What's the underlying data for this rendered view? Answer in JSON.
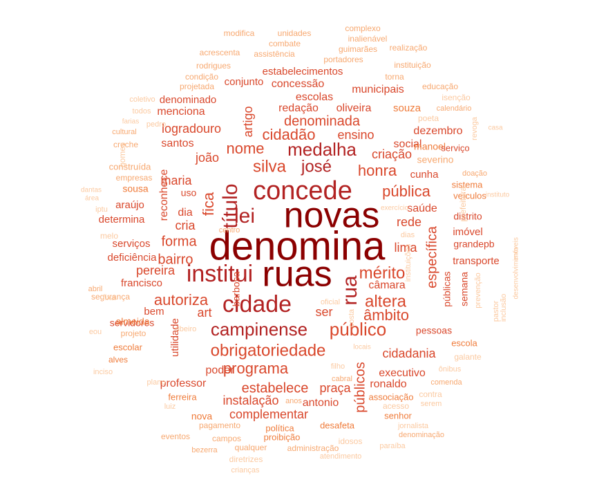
{
  "palette": {
    "t1": "#8b0000",
    "t2": "#b22222",
    "t3": "#d9472b",
    "t4": "#ef7b3a",
    "t5": "#f7a870",
    "t6": "#fbc9a0"
  },
  "words": [
    {
      "text": "denomina",
      "weight": 1.0,
      "tier": "t1",
      "vertical": false
    },
    {
      "text": "novas",
      "weight": 0.97,
      "tier": "t1",
      "vertical": false
    },
    {
      "text": "ruas",
      "weight": 0.98,
      "tier": "t1",
      "vertical": false
    },
    {
      "text": "concede",
      "weight": 0.8,
      "tier": "t2",
      "vertical": false
    },
    {
      "text": "institui",
      "weight": 0.72,
      "tier": "t2",
      "vertical": false
    },
    {
      "text": "cidade",
      "weight": 0.72,
      "tier": "t2",
      "vertical": false
    },
    {
      "text": "título",
      "weight": 0.66,
      "tier": "t2",
      "vertical": true
    },
    {
      "text": "lei",
      "weight": 0.66,
      "tier": "t2",
      "vertical": false
    },
    {
      "text": "rua",
      "weight": 0.62,
      "tier": "t2",
      "vertical": true
    },
    {
      "text": "campinense",
      "weight": 0.58,
      "tier": "t2",
      "vertical": false
    },
    {
      "text": "medalha",
      "weight": 0.55,
      "tier": "t2",
      "vertical": false
    },
    {
      "text": "público",
      "weight": 0.55,
      "tier": "t3",
      "vertical": false
    },
    {
      "text": "obrigatoriedade",
      "weight": 0.52,
      "tier": "t3",
      "vertical": false
    },
    {
      "text": "josé",
      "weight": 0.52,
      "tier": "t2",
      "vertical": false
    },
    {
      "text": "silva",
      "weight": 0.52,
      "tier": "t3",
      "vertical": false
    },
    {
      "text": "mérito",
      "weight": 0.5,
      "tier": "t3",
      "vertical": false
    },
    {
      "text": "altera",
      "weight": 0.5,
      "tier": "t3",
      "vertical": false
    },
    {
      "text": "fica",
      "weight": 0.48,
      "tier": "t3",
      "vertical": true
    },
    {
      "text": "cidadão",
      "weight": 0.46,
      "tier": "t3",
      "vertical": false
    },
    {
      "text": "nome",
      "weight": 0.44,
      "tier": "t3",
      "vertical": false
    },
    {
      "text": "autoriza",
      "weight": 0.44,
      "tier": "t3",
      "vertical": false
    },
    {
      "text": "pública",
      "weight": 0.42,
      "tier": "t3",
      "vertical": false
    },
    {
      "text": "honra",
      "weight": 0.42,
      "tier": "t3",
      "vertical": false
    },
    {
      "text": "programa",
      "weight": 0.42,
      "tier": "t3",
      "vertical": false
    },
    {
      "text": "âmbito",
      "weight": 0.42,
      "tier": "t3",
      "vertical": false
    },
    {
      "text": "específica",
      "weight": 0.42,
      "tier": "t3",
      "vertical": true
    },
    {
      "text": "denominada",
      "weight": 0.4,
      "tier": "t3",
      "vertical": false
    },
    {
      "text": "estabelece",
      "weight": 0.38,
      "tier": "t3",
      "vertical": false
    },
    {
      "text": "forma",
      "weight": 0.38,
      "tier": "t3",
      "vertical": false
    },
    {
      "text": "públicos",
      "weight": 0.38,
      "tier": "t3",
      "vertical": true
    },
    {
      "text": "bairro",
      "weight": 0.36,
      "tier": "t3",
      "vertical": false
    },
    {
      "text": "ensino",
      "weight": 0.34,
      "tier": "t3",
      "vertical": false
    },
    {
      "text": "criação",
      "weight": 0.34,
      "tier": "t3",
      "vertical": false
    },
    {
      "text": "rede",
      "weight": 0.34,
      "tier": "t3",
      "vertical": false
    },
    {
      "text": "lima",
      "weight": 0.34,
      "tier": "t3",
      "vertical": false
    },
    {
      "text": "maria",
      "weight": 0.34,
      "tier": "t3",
      "vertical": false
    },
    {
      "text": "art",
      "weight": 0.33,
      "tier": "t3",
      "vertical": false
    },
    {
      "text": "ser",
      "weight": 0.32,
      "tier": "t3",
      "vertical": false
    },
    {
      "text": "cria",
      "weight": 0.32,
      "tier": "t3",
      "vertical": false
    },
    {
      "text": "artigo",
      "weight": 0.3,
      "tier": "t3",
      "vertical": true
    },
    {
      "text": "pereira",
      "weight": 0.3,
      "tier": "t3",
      "vertical": false
    },
    {
      "text": "logradouro",
      "weight": 0.3,
      "tier": "t3",
      "vertical": false
    },
    {
      "text": "joão",
      "weight": 0.3,
      "tier": "t3",
      "vertical": false
    },
    {
      "text": "cidadania",
      "weight": 0.3,
      "tier": "t3",
      "vertical": false
    },
    {
      "text": "complementar",
      "weight": 0.3,
      "tier": "t3",
      "vertical": false
    },
    {
      "text": "instalação",
      "weight": 0.3,
      "tier": "t3",
      "vertical": false
    },
    {
      "text": "praça",
      "weight": 0.3,
      "tier": "t3",
      "vertical": false
    },
    {
      "text": "reconhece",
      "weight": 0.3,
      "tier": "t3",
      "vertical": true
    },
    {
      "text": "dia",
      "weight": 0.3,
      "tier": "t3",
      "vertical": false
    },
    {
      "text": "santos",
      "weight": 0.3,
      "tier": "t3",
      "vertical": false
    },
    {
      "text": "saúde",
      "weight": 0.3,
      "tier": "t3",
      "vertical": false
    },
    {
      "text": "câmara",
      "weight": 0.28,
      "tier": "t3",
      "vertical": false
    },
    {
      "text": "redação",
      "weight": 0.28,
      "tier": "t3",
      "vertical": false
    },
    {
      "text": "escolas",
      "weight": 0.28,
      "tier": "t3",
      "vertical": false
    },
    {
      "text": "social",
      "weight": 0.28,
      "tier": "t3",
      "vertical": false
    },
    {
      "text": "menciona",
      "weight": 0.28,
      "tier": "t3",
      "vertical": false
    },
    {
      "text": "professor",
      "weight": 0.28,
      "tier": "t3",
      "vertical": false
    },
    {
      "text": "poder",
      "weight": 0.28,
      "tier": "t3",
      "vertical": false
    },
    {
      "text": "executivo",
      "weight": 0.28,
      "tier": "t3",
      "vertical": false
    },
    {
      "text": "ronaldo",
      "weight": 0.28,
      "tier": "t3",
      "vertical": false
    },
    {
      "text": "antonio",
      "weight": 0.28,
      "tier": "t3",
      "vertical": false
    },
    {
      "text": "oliveira",
      "weight": 0.28,
      "tier": "t3",
      "vertical": false
    },
    {
      "text": "utilidade",
      "weight": 0.26,
      "tier": "t3",
      "vertical": true
    },
    {
      "text": "cunha",
      "weight": 0.26,
      "tier": "t3",
      "vertical": false
    },
    {
      "text": "concessão",
      "weight": 0.26,
      "tier": "t3",
      "vertical": false
    },
    {
      "text": "municipais",
      "weight": 0.26,
      "tier": "t3",
      "vertical": false
    },
    {
      "text": "conjunto",
      "weight": 0.26,
      "tier": "t3",
      "vertical": false
    },
    {
      "text": "estabelecimentos",
      "weight": 0.26,
      "tier": "t3",
      "vertical": false
    },
    {
      "text": "dezembro",
      "weight": 0.26,
      "tier": "t3",
      "vertical": false
    },
    {
      "text": "souza",
      "weight": 0.26,
      "tier": "t4",
      "vertical": false
    },
    {
      "text": "francisco",
      "weight": 0.26,
      "tier": "t3",
      "vertical": false
    },
    {
      "text": "bem",
      "weight": 0.26,
      "tier": "t3",
      "vertical": false
    },
    {
      "text": "serviços",
      "weight": 0.26,
      "tier": "t3",
      "vertical": false
    },
    {
      "text": "denominado",
      "weight": 0.26,
      "tier": "t3",
      "vertical": false
    },
    {
      "text": "transporte",
      "weight": 0.26,
      "tier": "t3",
      "vertical": false
    },
    {
      "text": "araújo",
      "weight": 0.26,
      "tier": "t3",
      "vertical": false
    },
    {
      "text": "determina",
      "weight": 0.26,
      "tier": "t3",
      "vertical": false
    },
    {
      "text": "deficiência",
      "weight": 0.26,
      "tier": "t3",
      "vertical": false
    },
    {
      "text": "imóvel",
      "weight": 0.26,
      "tier": "t3",
      "vertical": false
    },
    {
      "text": "distrito",
      "weight": 0.24,
      "tier": "t3",
      "vertical": false
    },
    {
      "text": "grandepb",
      "weight": 0.24,
      "tier": "t3",
      "vertical": false
    },
    {
      "text": "públicas",
      "weight": 0.24,
      "tier": "t3",
      "vertical": true
    },
    {
      "text": "semana",
      "weight": 0.24,
      "tier": "t3",
      "vertical": true
    },
    {
      "text": "pessoas",
      "weight": 0.24,
      "tier": "t3",
      "vertical": false
    },
    {
      "text": "uso",
      "weight": 0.24,
      "tier": "t3",
      "vertical": false
    },
    {
      "text": "barbosa",
      "weight": 0.24,
      "tier": "t3",
      "vertical": true
    },
    {
      "text": "servidores",
      "weight": 0.24,
      "tier": "t3",
      "vertical": false
    },
    {
      "text": "manoel",
      "weight": 0.22,
      "tier": "t4",
      "vertical": false
    },
    {
      "text": "nova",
      "weight": 0.22,
      "tier": "t4",
      "vertical": false
    },
    {
      "text": "sousa",
      "weight": 0.22,
      "tier": "t4",
      "vertical": false
    },
    {
      "text": "almeida",
      "weight": 0.22,
      "tier": "t4",
      "vertical": false
    },
    {
      "text": "severino",
      "weight": 0.2,
      "tier": "t5",
      "vertical": false
    },
    {
      "text": "serviço",
      "weight": 0.2,
      "tier": "t3",
      "vertical": false
    },
    {
      "text": "veículos",
      "weight": 0.2,
      "tier": "t4",
      "vertical": false
    },
    {
      "text": "sistema",
      "weight": 0.2,
      "tier": "t4",
      "vertical": false
    },
    {
      "text": "escola",
      "weight": 0.2,
      "tier": "t4",
      "vertical": false
    },
    {
      "text": "escolar",
      "weight": 0.2,
      "tier": "t4",
      "vertical": false
    },
    {
      "text": "associação",
      "weight": 0.2,
      "tier": "t4",
      "vertical": false
    },
    {
      "text": "desafeta",
      "weight": 0.2,
      "tier": "t4",
      "vertical": false
    },
    {
      "text": "senhor",
      "weight": 0.2,
      "tier": "t4",
      "vertical": false
    },
    {
      "text": "política",
      "weight": 0.2,
      "tier": "t4",
      "vertical": false
    },
    {
      "text": "proibição",
      "weight": 0.2,
      "tier": "t4",
      "vertical": false
    },
    {
      "text": "ferreira",
      "weight": 0.2,
      "tier": "t4",
      "vertical": false
    },
    {
      "text": "construída",
      "weight": 0.18,
      "tier": "t5",
      "vertical": false
    },
    {
      "text": "empresas",
      "weight": 0.18,
      "tier": "t5",
      "vertical": false
    },
    {
      "text": "alves",
      "weight": 0.18,
      "tier": "t4",
      "vertical": false
    },
    {
      "text": "projeto",
      "weight": 0.18,
      "tier": "t5",
      "vertical": false
    },
    {
      "text": "segurança",
      "weight": 0.18,
      "tier": "t5",
      "vertical": false
    },
    {
      "text": "rodrigues",
      "weight": 0.18,
      "tier": "t5",
      "vertical": false
    },
    {
      "text": "acrescenta",
      "weight": 0.18,
      "tier": "t5",
      "vertical": false
    },
    {
      "text": "assistência",
      "weight": 0.16,
      "tier": "t5",
      "vertical": false
    },
    {
      "text": "combate",
      "weight": 0.16,
      "tier": "t5",
      "vertical": false
    },
    {
      "text": "modifica",
      "weight": 0.16,
      "tier": "t5",
      "vertical": false
    },
    {
      "text": "unidades",
      "weight": 0.16,
      "tier": "t5",
      "vertical": false
    },
    {
      "text": "complexo",
      "weight": 0.16,
      "tier": "t5",
      "vertical": false
    },
    {
      "text": "inalienável",
      "weight": 0.16,
      "tier": "t5",
      "vertical": false
    },
    {
      "text": "guimarães",
      "weight": 0.15,
      "tier": "t5",
      "vertical": false
    },
    {
      "text": "realização",
      "weight": 0.16,
      "tier": "t5",
      "vertical": false
    },
    {
      "text": "portadores",
      "weight": 0.16,
      "tier": "t5",
      "vertical": false
    },
    {
      "text": "instituição",
      "weight": 0.18,
      "tier": "t5",
      "vertical": false
    },
    {
      "text": "torna",
      "weight": 0.15,
      "tier": "t5",
      "vertical": false
    },
    {
      "text": "condição",
      "weight": 0.16,
      "tier": "t5",
      "vertical": false
    },
    {
      "text": "projetada",
      "weight": 0.15,
      "tier": "t5",
      "vertical": false
    },
    {
      "text": "educação",
      "weight": 0.16,
      "tier": "t5",
      "vertical": false
    },
    {
      "text": "isenção",
      "weight": 0.14,
      "tier": "t6",
      "vertical": false
    },
    {
      "text": "calendário",
      "weight": 0.18,
      "tier": "t5",
      "vertical": false
    },
    {
      "text": "poeta",
      "weight": 0.14,
      "tier": "t6",
      "vertical": false
    },
    {
      "text": "coletivo",
      "weight": 0.14,
      "tier": "t6",
      "vertical": false
    },
    {
      "text": "todos",
      "weight": 0.13,
      "tier": "t6",
      "vertical": false
    },
    {
      "text": "farias",
      "weight": 0.14,
      "tier": "t6",
      "vertical": false
    },
    {
      "text": "cultural",
      "weight": 0.15,
      "tier": "t5",
      "vertical": false
    },
    {
      "text": "creche",
      "weight": 0.15,
      "tier": "t5",
      "vertical": false
    },
    {
      "text": "gomes",
      "weight": 0.14,
      "tier": "t6",
      "vertical": true
    },
    {
      "text": "pedro",
      "weight": 0.14,
      "tier": "t6",
      "vertical": false
    },
    {
      "text": "revoga",
      "weight": 0.13,
      "tier": "t6",
      "vertical": true
    },
    {
      "text": "casa",
      "weight": 0.14,
      "tier": "t6",
      "vertical": false
    },
    {
      "text": "doação",
      "weight": 0.16,
      "tier": "t5",
      "vertical": false
    },
    {
      "text": "prefeitura",
      "weight": 0.13,
      "tier": "t6",
      "vertical": true
    },
    {
      "text": "instituto",
      "weight": 0.13,
      "tier": "t6",
      "vertical": false
    },
    {
      "text": "dantas",
      "weight": 0.13,
      "tier": "t6",
      "vertical": false
    },
    {
      "text": "área",
      "weight": 0.14,
      "tier": "t6",
      "vertical": false
    },
    {
      "text": "iptu",
      "weight": 0.12,
      "tier": "t6",
      "vertical": false
    },
    {
      "text": "exercício",
      "weight": 0.14,
      "tier": "t6",
      "vertical": false
    },
    {
      "text": "centro",
      "weight": 0.15,
      "tier": "t5",
      "vertical": false
    },
    {
      "text": "melo",
      "weight": 0.14,
      "tier": "t6",
      "vertical": false
    },
    {
      "text": "dias",
      "weight": 0.14,
      "tier": "t6",
      "vertical": false
    },
    {
      "text": "instituições",
      "weight": 0.13,
      "tier": "t6",
      "vertical": true
    },
    {
      "text": "imóveis",
      "weight": 0.13,
      "tier": "t6",
      "vertical": true
    },
    {
      "text": "desenvolvimento",
      "weight": 0.14,
      "tier": "t6",
      "vertical": true
    },
    {
      "text": "inclusão",
      "weight": 0.14,
      "tier": "t6",
      "vertical": true
    },
    {
      "text": "pastor",
      "weight": 0.14,
      "tier": "t6",
      "vertical": true
    },
    {
      "text": "prevenção",
      "weight": 0.14,
      "tier": "t6",
      "vertical": true
    },
    {
      "text": "abril",
      "weight": 0.15,
      "tier": "t5",
      "vertical": false
    },
    {
      "text": "fixa",
      "weight": 0.14,
      "tier": "t6",
      "vertical": false
    },
    {
      "text": "oficial",
      "weight": 0.14,
      "tier": "t6",
      "vertical": false
    },
    {
      "text": "costa",
      "weight": 0.14,
      "tier": "t6",
      "vertical": true
    },
    {
      "text": "ribeiro",
      "weight": 0.14,
      "tier": "t6",
      "vertical": false
    },
    {
      "text": "eou",
      "weight": 0.13,
      "tier": "t6",
      "vertical": false
    },
    {
      "text": "locais",
      "weight": 0.14,
      "tier": "t6",
      "vertical": false
    },
    {
      "text": "filho",
      "weight": 0.14,
      "tier": "t6",
      "vertical": false
    },
    {
      "text": "cabral",
      "weight": 0.15,
      "tier": "t5",
      "vertical": false
    },
    {
      "text": "galante",
      "weight": 0.14,
      "tier": "t6",
      "vertical": false
    },
    {
      "text": "inciso",
      "weight": 0.14,
      "tier": "t6",
      "vertical": false
    },
    {
      "text": "ônibus",
      "weight": 0.14,
      "tier": "t6",
      "vertical": false
    },
    {
      "text": "plano",
      "weight": 0.14,
      "tier": "t6",
      "vertical": false
    },
    {
      "text": "comenda",
      "weight": 0.15,
      "tier": "t5",
      "vertical": false
    },
    {
      "text": "contra",
      "weight": 0.14,
      "tier": "t6",
      "vertical": false
    },
    {
      "text": "serem",
      "weight": 0.14,
      "tier": "t6",
      "vertical": false
    },
    {
      "text": "luiz",
      "weight": 0.14,
      "tier": "t6",
      "vertical": false
    },
    {
      "text": "anos",
      "weight": 0.15,
      "tier": "t5",
      "vertical": false
    },
    {
      "text": "acesso",
      "weight": 0.14,
      "tier": "t6",
      "vertical": false
    },
    {
      "text": "jornalista",
      "weight": 0.14,
      "tier": "t6",
      "vertical": false
    },
    {
      "text": "denominação",
      "weight": 0.16,
      "tier": "t5",
      "vertical": false
    },
    {
      "text": "pagamento",
      "weight": 0.15,
      "tier": "t5",
      "vertical": false
    },
    {
      "text": "eventos",
      "weight": 0.16,
      "tier": "t5",
      "vertical": false
    },
    {
      "text": "campos",
      "weight": 0.15,
      "tier": "t5",
      "vertical": false
    },
    {
      "text": "idosos",
      "weight": 0.14,
      "tier": "t6",
      "vertical": false
    },
    {
      "text": "paraíba",
      "weight": 0.14,
      "tier": "t6",
      "vertical": false
    },
    {
      "text": "bezerra",
      "weight": 0.15,
      "tier": "t5",
      "vertical": false
    },
    {
      "text": "qualquer",
      "weight": 0.15,
      "tier": "t5",
      "vertical": false
    },
    {
      "text": "administração",
      "weight": 0.15,
      "tier": "t5",
      "vertical": false
    },
    {
      "text": "diretrizes",
      "weight": 0.14,
      "tier": "t6",
      "vertical": false
    },
    {
      "text": "atendimento",
      "weight": 0.14,
      "tier": "t6",
      "vertical": false
    },
    {
      "text": "crianças",
      "weight": 0.14,
      "tier": "t6",
      "vertical": false
    }
  ]
}
